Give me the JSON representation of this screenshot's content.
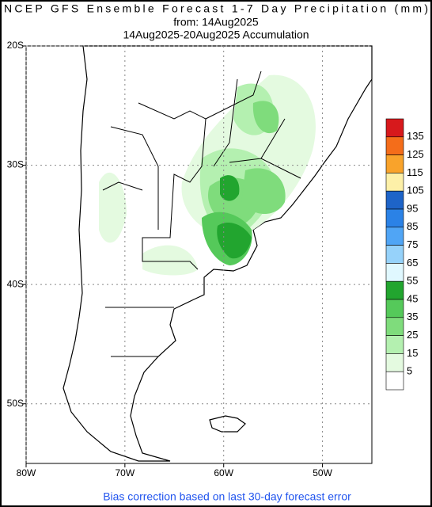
{
  "header": {
    "title": "NCEP GFS Ensemble Forecast 1-7 Day Precipitation (mm)",
    "from": "from: 14Aug2025",
    "period": "14Aug2025-20Aug2025 Accumulation"
  },
  "map": {
    "xlim": [
      -80,
      -45
    ],
    "ylim": [
      -20,
      -55
    ],
    "xticks": [
      {
        "value": -80,
        "label": "80W"
      },
      {
        "value": -70,
        "label": "70W"
      },
      {
        "value": -60,
        "label": "60W"
      },
      {
        "value": -50,
        "label": "50W"
      }
    ],
    "yticks": [
      {
        "value": -20,
        "label": "20S"
      },
      {
        "value": -30,
        "label": "30S"
      },
      {
        "value": -40,
        "label": "40S"
      },
      {
        "value": -50,
        "label": "50S"
      }
    ],
    "grid": true
  },
  "legend": {
    "levels": [
      135,
      125,
      115,
      105,
      95,
      85,
      75,
      65,
      55,
      45,
      35,
      25,
      15,
      5
    ],
    "colors": [
      "#d7191c",
      "#f46d1a",
      "#f9a32b",
      "#fdf0a8",
      "#1e64c8",
      "#2b82e6",
      "#50a5f5",
      "#96d2fa",
      "#e0f8ff",
      "#22a52f",
      "#55c95a",
      "#7fdc7c",
      "#b4f0b0",
      "#e4fae0",
      "#ffffff"
    ]
  },
  "footer": "Bias correction based on last 30-day forecast error"
}
